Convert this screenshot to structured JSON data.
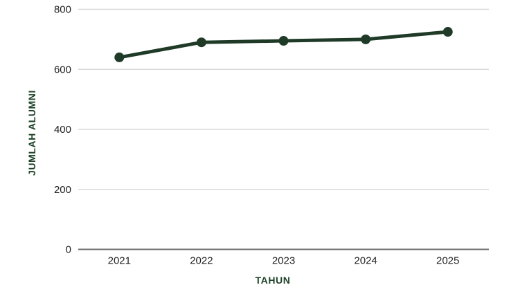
{
  "chart_data": {
    "type": "line",
    "categories": [
      "2021",
      "2022",
      "2023",
      "2024",
      "2025"
    ],
    "values": [
      640,
      690,
      695,
      700,
      725
    ],
    "xlabel": "TAHUN",
    "ylabel": "JUMLAH ALUMNI",
    "ylim": [
      0,
      800
    ],
    "yticks": [
      0,
      200,
      400,
      600,
      800
    ],
    "grid": true,
    "legend": false,
    "point_marker": "circle",
    "colors": {
      "line": "#1f3b28",
      "point": "#1f3b28",
      "axis_title": "#1e4227",
      "tick_label": "#212121",
      "gridline": "#d8d8d8",
      "axis_line": "#6e6e6e",
      "background": "#ffffff"
    }
  }
}
